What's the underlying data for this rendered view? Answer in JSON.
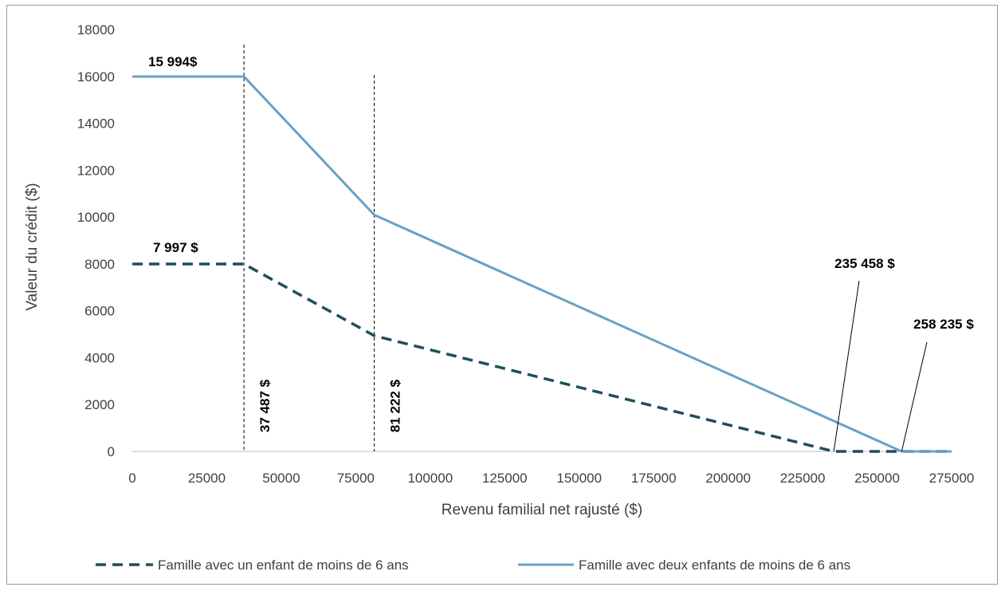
{
  "chart_data": {
    "type": "line",
    "title": "",
    "xlabel": "Revenu familial net rajusté ($)",
    "ylabel": "Valeur du crédit ($)",
    "xlim": [
      0,
      275000
    ],
    "ylim": [
      0,
      18000
    ],
    "x_ticks": [
      0,
      25000,
      50000,
      75000,
      100000,
      125000,
      150000,
      175000,
      200000,
      225000,
      250000,
      275000
    ],
    "y_ticks": [
      0,
      2000,
      4000,
      6000,
      8000,
      10000,
      12000,
      14000,
      16000,
      18000
    ],
    "grid": false,
    "legend_position": "bottom",
    "series": [
      {
        "name": "Famille avec un enfant de moins de 6 ans",
        "color": "#1f4e5a",
        "style": "dashed",
        "x": [
          0,
          37487,
          81222,
          235458,
          275000
        ],
        "y": [
          7997,
          7997,
          4937,
          0,
          0
        ]
      },
      {
        "name": "Famille avec deux enfants de moins de 6 ans",
        "color": "#6aa1c4",
        "style": "solid",
        "x": [
          0,
          37487,
          81222,
          258235,
          275000
        ],
        "y": [
          15994,
          15994,
          10089,
          0,
          0
        ]
      }
    ],
    "reference_lines": [
      {
        "x": 37487,
        "label": "37 487 $"
      },
      {
        "x": 81222,
        "label": "81 222 $"
      }
    ],
    "annotations": [
      {
        "text": "15 994$",
        "x": 0,
        "y": 15994
      },
      {
        "text": "7 997 $",
        "x": 0,
        "y": 7997
      },
      {
        "text": "235 458 $",
        "x": 235458,
        "y": 0
      },
      {
        "text": "258 235 $",
        "x": 258235,
        "y": 0
      }
    ]
  }
}
